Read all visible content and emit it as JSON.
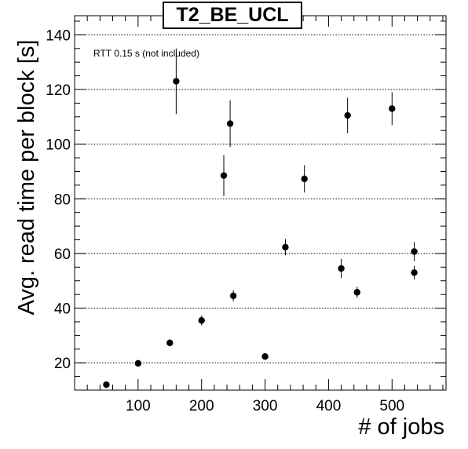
{
  "chart_data": {
    "type": "scatter",
    "title": "T2_BE_UCL",
    "annotation": "RTT 0.15 s (not included)",
    "xlabel": "# of jobs",
    "ylabel": "Avg. read time per block [s]",
    "xlim": [
      0,
      585
    ],
    "ylim": [
      10,
      147
    ],
    "xticks": [
      100,
      200,
      300,
      400,
      500
    ],
    "yticks": [
      20,
      40,
      60,
      80,
      100,
      120,
      140
    ],
    "grid": "y-dotted",
    "points": [
      {
        "x": 50,
        "y": 12,
        "err": 0.8
      },
      {
        "x": 100,
        "y": 19.8,
        "err": 1
      },
      {
        "x": 150,
        "y": 27.3,
        "err": 1.3
      },
      {
        "x": 160,
        "y": 123,
        "err": 12
      },
      {
        "x": 200,
        "y": 35.5,
        "err": 1.8
      },
      {
        "x": 235,
        "y": 88.5,
        "err": 7.5
      },
      {
        "x": 245,
        "y": 107.5,
        "err": 8.5
      },
      {
        "x": 250,
        "y": 44.5,
        "err": 2
      },
      {
        "x": 300,
        "y": 22.3,
        "err": 1
      },
      {
        "x": 332,
        "y": 62.3,
        "err": 3
      },
      {
        "x": 362,
        "y": 87.3,
        "err": 5
      },
      {
        "x": 420,
        "y": 54.5,
        "err": 3.5
      },
      {
        "x": 430,
        "y": 110.5,
        "err": 6.5
      },
      {
        "x": 445,
        "y": 45.8,
        "err": 2
      },
      {
        "x": 500,
        "y": 113,
        "err": 6
      },
      {
        "x": 535,
        "y": 60.7,
        "err": 3.5
      },
      {
        "x": 535,
        "y": 53,
        "err": 2.5
      }
    ]
  }
}
